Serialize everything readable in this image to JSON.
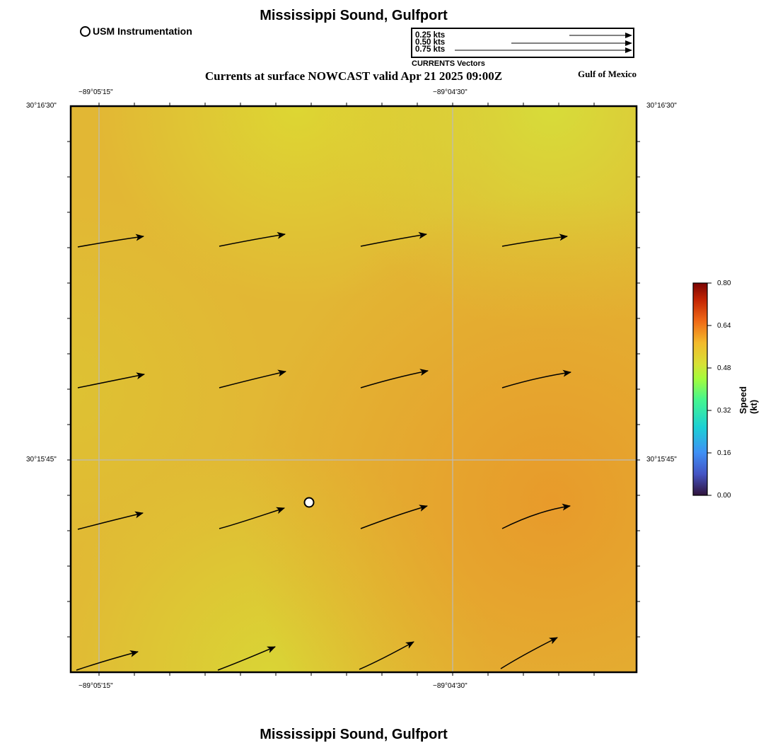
{
  "header": {
    "title": "Mississippi Sound, Gulfport",
    "subtitle": "Currents at surface NOWCAST valid Apr 21 2025 09:00Z",
    "region": "Gulf of Mexico",
    "footer_title": "Mississippi Sound, Gulfport"
  },
  "legend": {
    "instrument_label": "USM Instrumentation",
    "vector_scale": [
      "0.25 kts",
      "0.50 kts",
      "0.75 kts"
    ],
    "vector_scale_title": "CURRENTS Vectors"
  },
  "axes": {
    "lon_top_labels": [
      "−89°05'15\"",
      "−89°04'30\""
    ],
    "lon_bottom_labels": [
      "−89°05'15\"",
      "−89°04'30\""
    ],
    "lat_left_labels": [
      "30°16'30\"",
      "30°15'45\""
    ],
    "lat_right_labels": [
      "30°16'30\"",
      "30°15'45\""
    ]
  },
  "colorbar": {
    "title": "Speed (kt)",
    "ticks": [
      "0.80",
      "0.64",
      "0.48",
      "0.32",
      "0.16",
      "0.00"
    ],
    "range": [
      0.0,
      0.8
    ]
  },
  "colors": {
    "field_base": "#e4b431",
    "field_light": "#dcda33",
    "field_orange": "#e8992a",
    "gridline": "#bbbbbb"
  }
}
